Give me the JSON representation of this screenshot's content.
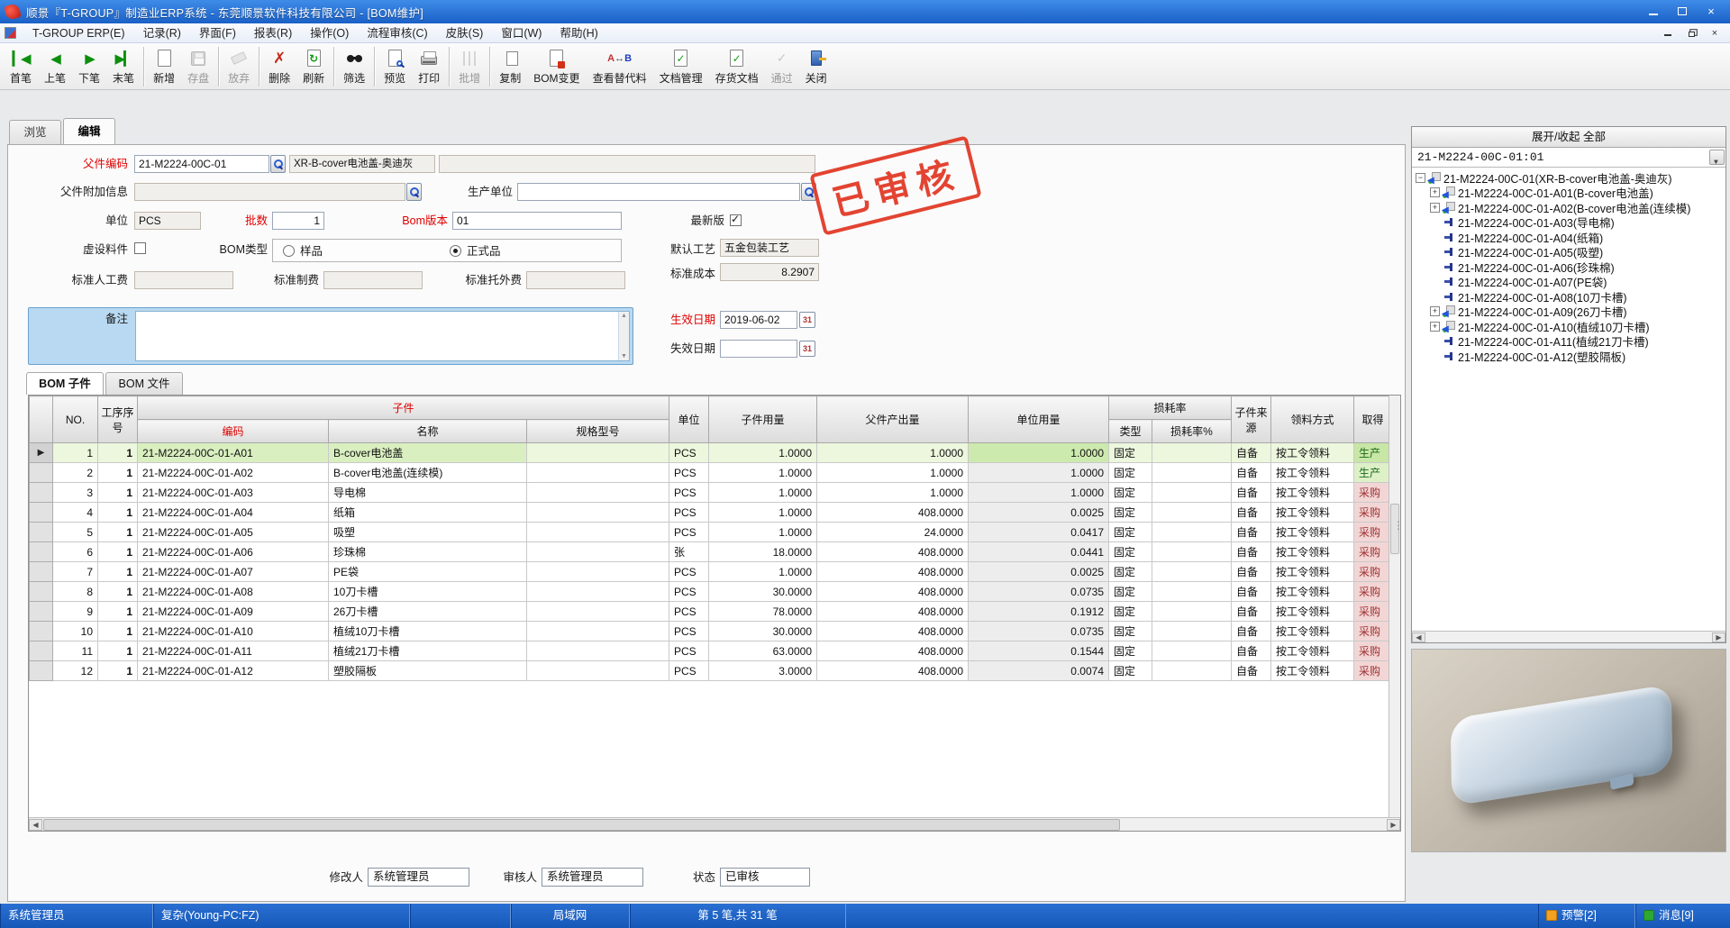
{
  "window": {
    "title": "顺景『T-GROUP』制造业ERP系统 - 东莞顺景软件科技有限公司 - [BOM维护]"
  },
  "menu": {
    "items": [
      "T-GROUP ERP(E)",
      "记录(R)",
      "界面(F)",
      "报表(R)",
      "操作(O)",
      "流程审核(C)",
      "皮肤(S)",
      "窗口(W)",
      "帮助(H)"
    ]
  },
  "toolbar": [
    {
      "label": "首笔",
      "name": "first-record",
      "icon": "nav-first",
      "enabled": true,
      "sep": false
    },
    {
      "label": "上笔",
      "name": "prev-record",
      "icon": "nav-prev",
      "enabled": true,
      "sep": false
    },
    {
      "label": "下笔",
      "name": "next-record",
      "icon": "nav-next",
      "enabled": true,
      "sep": false
    },
    {
      "label": "末笔",
      "name": "last-record",
      "icon": "nav-last",
      "enabled": true,
      "sep": true
    },
    {
      "label": "新增",
      "name": "add-new",
      "icon": "page",
      "enabled": true,
      "sep": false
    },
    {
      "label": "存盘",
      "name": "save",
      "icon": "floppy",
      "enabled": false,
      "sep": true
    },
    {
      "label": "放弃",
      "name": "discard",
      "icon": "eraser",
      "enabled": false,
      "sep": true
    },
    {
      "label": "删除",
      "name": "delete",
      "icon": "red-x",
      "enabled": true,
      "sep": false
    },
    {
      "label": "刷新",
      "name": "refresh",
      "icon": "page-refresh",
      "enabled": true,
      "sep": true
    },
    {
      "label": "筛选",
      "name": "filter",
      "icon": "binoculars",
      "enabled": true,
      "sep": true
    },
    {
      "label": "预览",
      "name": "print-preview",
      "icon": "page-magnifier",
      "enabled": true,
      "sep": false
    },
    {
      "label": "打印",
      "name": "print",
      "icon": "printer",
      "enabled": true,
      "sep": true
    },
    {
      "label": "批增",
      "name": "batch-add",
      "icon": "bars",
      "enabled": false,
      "sep": true
    },
    {
      "label": "复制",
      "name": "copy",
      "icon": "copy-pages",
      "enabled": true,
      "sep": false
    },
    {
      "label": "BOM变更",
      "name": "bom-change",
      "icon": "page-red-corner",
      "enabled": true,
      "sep": false
    },
    {
      "label": "查看替代料",
      "name": "view-substitute",
      "icon": "ab-swap",
      "enabled": true,
      "sep": false
    },
    {
      "label": "文档管理",
      "name": "document-manage",
      "icon": "page-check",
      "enabled": true,
      "sep": false
    },
    {
      "label": "存货文档",
      "name": "inventory-doc",
      "icon": "page-check",
      "enabled": true,
      "sep": false
    },
    {
      "label": "通过",
      "name": "approve",
      "icon": "gray-check",
      "enabled": false,
      "sep": false
    },
    {
      "label": "关闭",
      "name": "close-window",
      "icon": "door",
      "enabled": true,
      "sep": false
    }
  ],
  "view_tabs": [
    {
      "label": "浏览",
      "active": false
    },
    {
      "label": "编辑",
      "active": true
    }
  ],
  "form": {
    "parent_code_label": "父件编码",
    "parent_code": "21-M2224-00C-01",
    "parent_name": "XR-B-cover电池盖-奥迪灰",
    "parent_extra_field": "",
    "parent_addl_label": "父件附加信息",
    "parent_addl": "",
    "prod_unit_label": "生产单位",
    "prod_unit": "",
    "unit_label": "单位",
    "unit": "PCS",
    "batch_label": "批数",
    "batch": "1",
    "bom_ver_label": "Bom版本",
    "bom_ver": "01",
    "latest_label": "最新版",
    "latest_checked": true,
    "virtual_label": "虚设料件",
    "virtual_checked": false,
    "bom_type_label": "BOM类型",
    "bom_type_sample": "样品",
    "bom_type_formal": "正式品",
    "bom_type_selected": "正式品",
    "default_process_label": "默认工艺",
    "default_process": "五金包装工艺",
    "std_labor_label": "标准人工费",
    "std_labor": "",
    "std_mfg_label": "标准制费",
    "std_mfg": "",
    "std_out_label": "标准托外费",
    "std_out": "",
    "std_cost_label": "标准成本",
    "std_cost": "8.2907",
    "remark_label": "备注",
    "remark": "",
    "effective_label": "生效日期",
    "effective_date": "2019-06-02",
    "expire_label": "失效日期",
    "expire_date": "",
    "calendar_glyph": "31"
  },
  "stamp": {
    "text": "已审核"
  },
  "bom_tabs": [
    {
      "label": "BOM 子件",
      "active": true
    },
    {
      "label": "BOM 文件",
      "active": false
    }
  ],
  "table": {
    "headers": {
      "no": "NO.",
      "seq": "工序序号",
      "child_group": "子件",
      "code": "编码",
      "name": "名称",
      "spec": "规格型号",
      "unit": "单位",
      "qty": "子件用量",
      "out": "父件产出量",
      "uqty": "单位用量",
      "loss_group": "损耗率",
      "loss_type": "类型",
      "loss_rate": "损耗率%",
      "src": "子件来源",
      "pick": "领料方式",
      "acq": "取得"
    },
    "rows": [
      {
        "no": "1",
        "seq": "1",
        "code": "21-M2224-00C-01-A01",
        "name": "B-cover电池盖",
        "spec": "",
        "unit": "PCS",
        "qty": "1.0000",
        "out": "1.0000",
        "uqty": "1.0000",
        "loss_type": "固定",
        "loss_rate": "",
        "src": "自备",
        "pick": "按工令领料",
        "acq": "生产",
        "selected": true
      },
      {
        "no": "2",
        "seq": "1",
        "code": "21-M2224-00C-01-A02",
        "name": "B-cover电池盖(连续模)",
        "spec": "",
        "unit": "PCS",
        "qty": "1.0000",
        "out": "1.0000",
        "uqty": "1.0000",
        "loss_type": "固定",
        "loss_rate": "",
        "src": "自备",
        "pick": "按工令领料",
        "acq": "生产",
        "selected": false
      },
      {
        "no": "3",
        "seq": "1",
        "code": "21-M2224-00C-01-A03",
        "name": "导电棉",
        "spec": "",
        "unit": "PCS",
        "qty": "1.0000",
        "out": "1.0000",
        "uqty": "1.0000",
        "loss_type": "固定",
        "loss_rate": "",
        "src": "自备",
        "pick": "按工令领料",
        "acq": "采购",
        "selected": false
      },
      {
        "no": "4",
        "seq": "1",
        "code": "21-M2224-00C-01-A04",
        "name": "纸箱",
        "spec": "",
        "unit": "PCS",
        "qty": "1.0000",
        "out": "408.0000",
        "uqty": "0.0025",
        "loss_type": "固定",
        "loss_rate": "",
        "src": "自备",
        "pick": "按工令领料",
        "acq": "采购",
        "selected": false
      },
      {
        "no": "5",
        "seq": "1",
        "code": "21-M2224-00C-01-A05",
        "name": "吸塑",
        "spec": "",
        "unit": "PCS",
        "qty": "1.0000",
        "out": "24.0000",
        "uqty": "0.0417",
        "loss_type": "固定",
        "loss_rate": "",
        "src": "自备",
        "pick": "按工令领料",
        "acq": "采购",
        "selected": false
      },
      {
        "no": "6",
        "seq": "1",
        "code": "21-M2224-00C-01-A06",
        "name": "珍珠棉",
        "spec": "",
        "unit": "张",
        "qty": "18.0000",
        "out": "408.0000",
        "uqty": "0.0441",
        "loss_type": "固定",
        "loss_rate": "",
        "src": "自备",
        "pick": "按工令领料",
        "acq": "采购",
        "selected": false
      },
      {
        "no": "7",
        "seq": "1",
        "code": "21-M2224-00C-01-A07",
        "name": "PE袋",
        "spec": "",
        "unit": "PCS",
        "qty": "1.0000",
        "out": "408.0000",
        "uqty": "0.0025",
        "loss_type": "固定",
        "loss_rate": "",
        "src": "自备",
        "pick": "按工令领料",
        "acq": "采购",
        "selected": false
      },
      {
        "no": "8",
        "seq": "1",
        "code": "21-M2224-00C-01-A08",
        "name": "10刀卡槽",
        "spec": "",
        "unit": "PCS",
        "qty": "30.0000",
        "out": "408.0000",
        "uqty": "0.0735",
        "loss_type": "固定",
        "loss_rate": "",
        "src": "自备",
        "pick": "按工令领料",
        "acq": "采购",
        "selected": false
      },
      {
        "no": "9",
        "seq": "1",
        "code": "21-M2224-00C-01-A09",
        "name": "26刀卡槽",
        "spec": "",
        "unit": "PCS",
        "qty": "78.0000",
        "out": "408.0000",
        "uqty": "0.1912",
        "loss_type": "固定",
        "loss_rate": "",
        "src": "自备",
        "pick": "按工令领料",
        "acq": "采购",
        "selected": false
      },
      {
        "no": "10",
        "seq": "1",
        "code": "21-M2224-00C-01-A10",
        "name": "植绒10刀卡槽",
        "spec": "",
        "unit": "PCS",
        "qty": "30.0000",
        "out": "408.0000",
        "uqty": "0.0735",
        "loss_type": "固定",
        "loss_rate": "",
        "src": "自备",
        "pick": "按工令领料",
        "acq": "采购",
        "selected": false
      },
      {
        "no": "11",
        "seq": "1",
        "code": "21-M2224-00C-01-A11",
        "name": "植绒21刀卡槽",
        "spec": "",
        "unit": "PCS",
        "qty": "63.0000",
        "out": "408.0000",
        "uqty": "0.1544",
        "loss_type": "固定",
        "loss_rate": "",
        "src": "自备",
        "pick": "按工令领料",
        "acq": "采购",
        "selected": false
      },
      {
        "no": "12",
        "seq": "1",
        "code": "21-M2224-00C-01-A12",
        "name": "塑胶隔板",
        "spec": "",
        "unit": "PCS",
        "qty": "3.0000",
        "out": "408.0000",
        "uqty": "0.0074",
        "loss_type": "固定",
        "loss_rate": "",
        "src": "自备",
        "pick": "按工令领料",
        "acq": "采购",
        "selected": false
      }
    ]
  },
  "footer": {
    "modifier_label": "修改人",
    "modifier": "系统管理员",
    "auditor_label": "审核人",
    "auditor": "系统管理员",
    "status_label": "状态",
    "status": "已审核"
  },
  "statusbar": {
    "segments": [
      "系统管理员",
      "复杂(Young-PC:FZ)",
      "",
      "局域网",
      "第 5 笔,共 31 笔"
    ],
    "alerts": "预警[2]",
    "messages": "消息[9]"
  },
  "tree": {
    "expand_button": "展开/收起 全部",
    "selector": "21-M2224-00C-01:01",
    "items": [
      {
        "text": "21-M2224-00C-01(XR-B-cover电池盖-奥迪灰)",
        "level": 0,
        "expand": "minus",
        "icon": "component"
      },
      {
        "text": "21-M2224-00C-01-A01(B-cover电池盖)",
        "level": 1,
        "expand": "plus",
        "icon": "component"
      },
      {
        "text": "21-M2224-00C-01-A02(B-cover电池盖(连续模)",
        "level": 1,
        "expand": "plus",
        "icon": "component"
      },
      {
        "text": "21-M2224-00C-01-A03(导电棉)",
        "level": 1,
        "expand": null,
        "icon": "pin"
      },
      {
        "text": "21-M2224-00C-01-A04(纸箱)",
        "level": 1,
        "expand": null,
        "icon": "pin"
      },
      {
        "text": "21-M2224-00C-01-A05(吸塑)",
        "level": 1,
        "expand": null,
        "icon": "pin"
      },
      {
        "text": "21-M2224-00C-01-A06(珍珠棉)",
        "level": 1,
        "expand": null,
        "icon": "pin"
      },
      {
        "text": "21-M2224-00C-01-A07(PE袋)",
        "level": 1,
        "expand": null,
        "icon": "pin"
      },
      {
        "text": "21-M2224-00C-01-A08(10刀卡槽)",
        "level": 1,
        "expand": null,
        "icon": "pin"
      },
      {
        "text": "21-M2224-00C-01-A09(26刀卡槽)",
        "level": 1,
        "expand": "plus",
        "icon": "component"
      },
      {
        "text": "21-M2224-00C-01-A10(植绒10刀卡槽)",
        "level": 1,
        "expand": "plus",
        "icon": "component"
      },
      {
        "text": "21-M2224-00C-01-A11(植绒21刀卡槽)",
        "level": 1,
        "expand": null,
        "icon": "pin"
      },
      {
        "text": "21-M2224-00C-01-A12(塑胶隔板)",
        "level": 1,
        "expand": null,
        "icon": "pin"
      }
    ]
  }
}
